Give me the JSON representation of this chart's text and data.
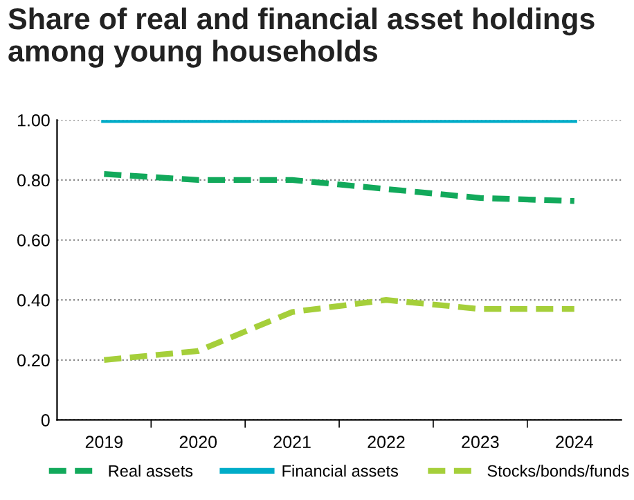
{
  "chart_data": {
    "type": "line",
    "title": "Share of real and financial asset holdings\namong young households",
    "categories": [
      "2019",
      "2020",
      "2021",
      "2022",
      "2023",
      "2024"
    ],
    "series": [
      {
        "name": "Real assets",
        "color": "#12a95b",
        "line_style": "dashed",
        "values": [
          0.82,
          0.8,
          0.8,
          0.77,
          0.74,
          0.73
        ]
      },
      {
        "name": "Financial assets",
        "color": "#00acc8",
        "line_style": "solid",
        "values": [
          1.0,
          1.0,
          1.0,
          1.0,
          1.0,
          1.0
        ]
      },
      {
        "name": "Stocks/bonds/funds",
        "color": "#a5cf3a",
        "line_style": "dashed",
        "values": [
          0.2,
          0.23,
          0.36,
          0.4,
          0.37,
          0.37
        ]
      }
    ],
    "ylim": [
      0,
      1.0
    ],
    "yticks": [
      0,
      {
        "value": 0.2,
        "label": "0.20"
      },
      {
        "value": 0.4,
        "label": "0.40"
      },
      {
        "value": 0.6,
        "label": "0.60"
      },
      {
        "value": 0.8,
        "label": "0.80"
      },
      {
        "value": 1.0,
        "label": "1.00"
      }
    ],
    "grid": "y",
    "legend": "bottom",
    "marker": "none"
  }
}
